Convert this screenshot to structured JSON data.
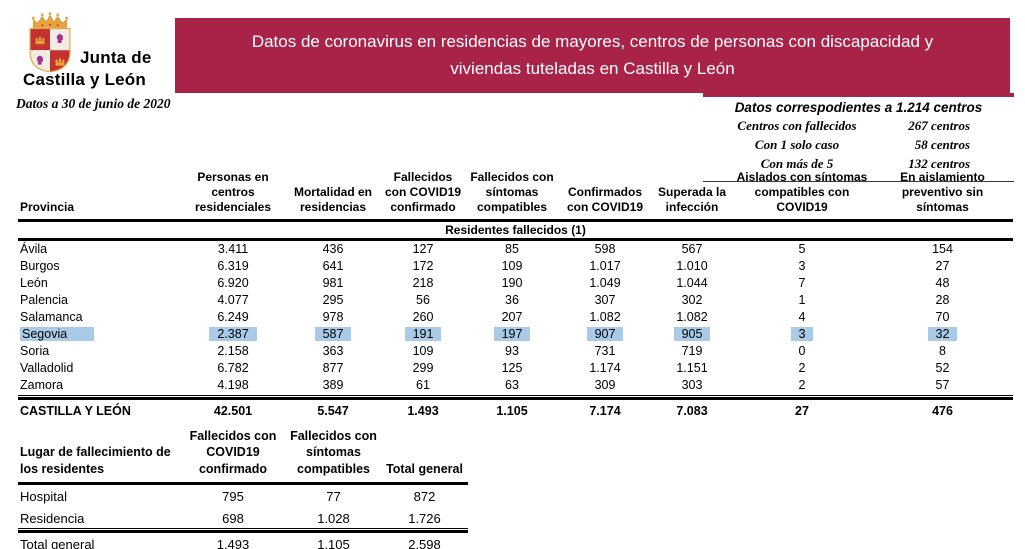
{
  "logo": {
    "org_line1": "Junta de",
    "org_line2": "Castilla y León"
  },
  "date_note": "Datos a 30 de junio de 2020",
  "banner": {
    "title": "Datos de coronavirus en residencias de mayores, centros de personas con discapacidad y viviendas tuteladas en Castilla y León",
    "bg_color": "#A92349",
    "text_color": "#FFFFFF"
  },
  "info_box": {
    "title": "Datos correspodientes a 1.214 centros",
    "rows": [
      {
        "label": "Centros con fallecidos",
        "value": "267 centros"
      },
      {
        "label": "Con 1 solo caso",
        "value": "58 centros"
      },
      {
        "label": "Con más de 5",
        "value": "132 centros"
      }
    ]
  },
  "main_table": {
    "row_header": "Provincia",
    "columns": [
      "Personas en centros residenciales",
      "Mortalidad en residencias",
      "Fallecidos con COVID19 confirmado",
      "Fallecidos con síntomas compatibles",
      "Confirmados con COVID19",
      "Superada la infección",
      "Aislados con síntomas compatibles con COVID19",
      "En aislamiento preventivo sin síntomas"
    ],
    "subheader": "Residentes fallecidos (1)",
    "highlight_color": "#A9CBE8",
    "rows": [
      {
        "province": "Ávila",
        "values": [
          "3.411",
          "436",
          "127",
          "85",
          "598",
          "567",
          "5",
          "154"
        ],
        "highlighted": false
      },
      {
        "province": "Burgos",
        "values": [
          "6.319",
          "641",
          "172",
          "109",
          "1.017",
          "1.010",
          "3",
          "27"
        ],
        "highlighted": false
      },
      {
        "province": "León",
        "values": [
          "6.920",
          "981",
          "218",
          "190",
          "1.049",
          "1.044",
          "7",
          "48"
        ],
        "highlighted": false
      },
      {
        "province": "Palencia",
        "values": [
          "4.077",
          "295",
          "56",
          "36",
          "307",
          "302",
          "1",
          "28"
        ],
        "highlighted": false
      },
      {
        "province": "Salamanca",
        "values": [
          "6.249",
          "978",
          "260",
          "207",
          "1.082",
          "1.082",
          "4",
          "70"
        ],
        "highlighted": false
      },
      {
        "province": "Segovia",
        "values": [
          "2.387",
          "587",
          "191",
          "197",
          "907",
          "905",
          "3",
          "32"
        ],
        "highlighted": true
      },
      {
        "province": "Soria",
        "values": [
          "2.158",
          "363",
          "109",
          "93",
          "731",
          "719",
          "0",
          "8"
        ],
        "highlighted": false
      },
      {
        "province": "Valladolid",
        "values": [
          "6.782",
          "877",
          "299",
          "125",
          "1.174",
          "1.151",
          "2",
          "52"
        ],
        "highlighted": false
      },
      {
        "province": "Zamora",
        "values": [
          "4.198",
          "389",
          "61",
          "63",
          "309",
          "303",
          "2",
          "57"
        ],
        "highlighted": false
      }
    ],
    "total_row": {
      "label": "CASTILLA Y LEÓN",
      "values": [
        "42.501",
        "5.547",
        "1.493",
        "1.105",
        "7.174",
        "7.083",
        "27",
        "476"
      ]
    }
  },
  "place_table": {
    "row_header": "Lugar de fallecimiento de los residentes",
    "columns": [
      "Fallecidos con COVID19 confirmado",
      "Fallecidos con síntomas compatibles",
      "Total general"
    ],
    "rows": [
      {
        "place": "Hospital",
        "values": [
          "795",
          "77",
          "872"
        ]
      },
      {
        "place": "Residencia",
        "values": [
          "698",
          "1.028",
          "1.726"
        ]
      }
    ],
    "total_row": {
      "label": "Total general",
      "values": [
        "1.493",
        "1.105",
        "2.598"
      ]
    }
  }
}
